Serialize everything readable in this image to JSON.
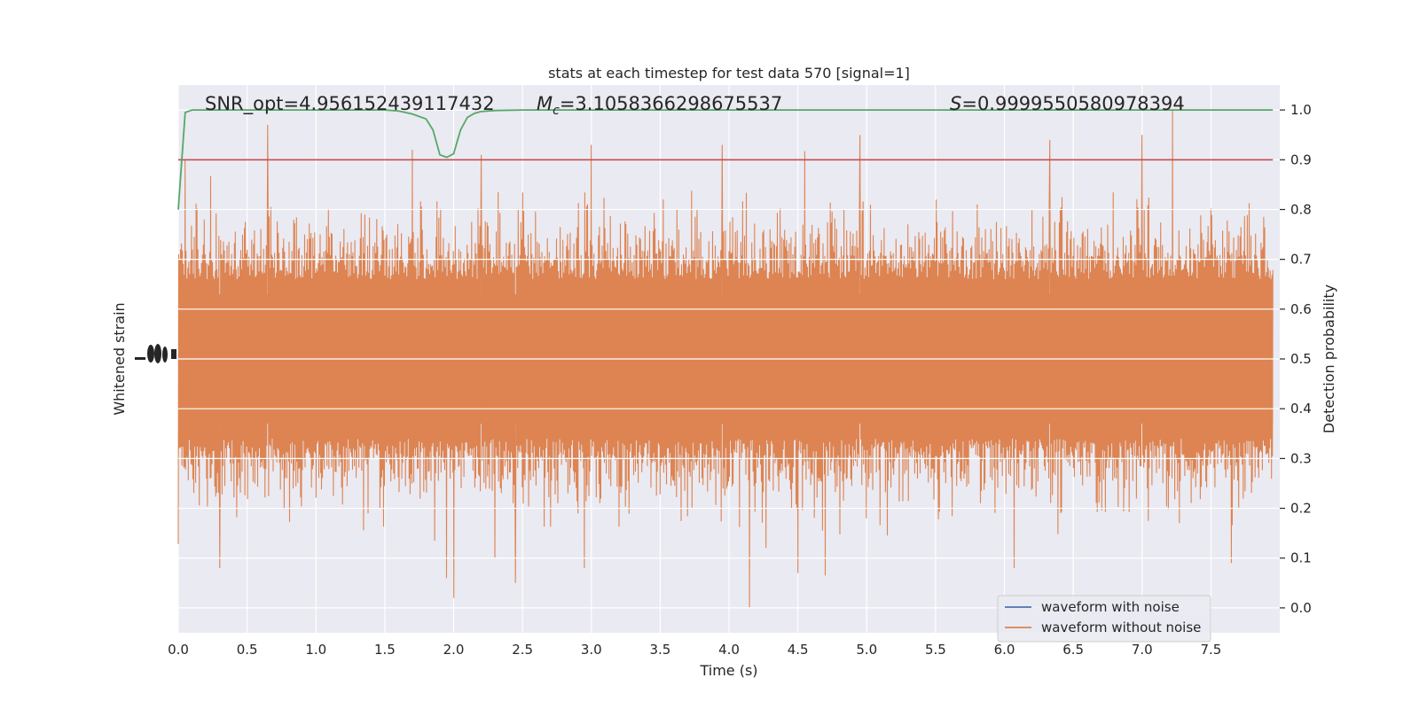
{
  "chart_data": {
    "type": "line",
    "title": "stats at each timestep for test data 570 [signal=1]",
    "xlabel": "Time (s)",
    "ylabel_left": "Whitened strain",
    "ylabel_right": "Detection probability",
    "xlim": [
      0.0,
      8.0
    ],
    "ylim_right": [
      -0.05,
      1.05
    ],
    "x_ticks": [
      "0.0",
      "0.5",
      "1.0",
      "1.5",
      "2.0",
      "2.5",
      "3.0",
      "3.5",
      "4.0",
      "4.5",
      "5.0",
      "5.5",
      "6.0",
      "6.5",
      "7.0",
      "7.5"
    ],
    "x_tick_values": [
      0.0,
      0.5,
      1.0,
      1.5,
      2.0,
      2.5,
      3.0,
      3.5,
      4.0,
      4.5,
      5.0,
      5.5,
      6.0,
      6.5,
      7.0,
      7.5
    ],
    "right_ticks": [
      "0.0",
      "0.1",
      "0.2",
      "0.3",
      "0.4",
      "0.5",
      "0.6",
      "0.7",
      "0.8",
      "0.9",
      "1.0"
    ],
    "right_tick_values": [
      0.0,
      0.1,
      0.2,
      0.3,
      0.4,
      0.5,
      0.6,
      0.7,
      0.8,
      0.9,
      1.0
    ],
    "annotations": {
      "snr": "SNR_opt=4.956152439117432",
      "mc_symbol": "M",
      "mc_subscript": "c",
      "mc_value": "=3.1058366298675537",
      "s_symbol": "S",
      "s_value": "=0.9999550580978394"
    },
    "threshold": {
      "value": 0.9,
      "color": "#c44e52"
    },
    "detection_probability": {
      "color": "#55a868",
      "x": [
        0.0,
        0.05,
        0.1,
        0.2,
        0.4,
        0.8,
        1.2,
        1.4,
        1.5,
        1.6,
        1.7,
        1.8,
        1.85,
        1.9,
        1.95,
        2.0,
        2.05,
        2.1,
        2.15,
        2.2,
        2.3,
        2.5,
        3.0,
        4.0,
        5.0,
        6.0,
        7.0,
        7.95
      ],
      "y": [
        0.8,
        0.995,
        1.0,
        1.0,
        1.0,
        1.0,
        1.0,
        1.0,
        1.0,
        0.998,
        0.992,
        0.982,
        0.96,
        0.91,
        0.905,
        0.912,
        0.96,
        0.985,
        0.993,
        0.997,
        0.999,
        1.0,
        1.0,
        1.0,
        1.0,
        1.0,
        1.0,
        1.0
      ]
    },
    "waveform_without_noise": {
      "color": "#dd8452",
      "baseline": 0.5,
      "typical_envelope": [
        0.3,
        0.7
      ],
      "noise_seed": 570,
      "peaks": [
        {
          "t": 0.65,
          "y": 0.97
        },
        {
          "t": 0.05,
          "y": 0.9
        },
        {
          "t": 1.7,
          "y": 0.92
        },
        {
          "t": 2.2,
          "y": 0.91
        },
        {
          "t": 3.0,
          "y": 0.93
        },
        {
          "t": 3.95,
          "y": 0.93
        },
        {
          "t": 4.95,
          "y": 0.95
        },
        {
          "t": 6.33,
          "y": 0.94
        },
        {
          "t": 7.0,
          "y": 0.95
        },
        {
          "t": 7.22,
          "y": 1.0
        },
        {
          "t": 1.95,
          "y": 0.06
        },
        {
          "t": 2.0,
          "y": 0.02
        },
        {
          "t": 4.15,
          "y": 0.0
        },
        {
          "t": 0.3,
          "y": 0.08
        },
        {
          "t": 2.45,
          "y": 0.05
        },
        {
          "t": 4.5,
          "y": 0.07
        },
        {
          "t": 4.7,
          "y": 0.065
        },
        {
          "t": 6.07,
          "y": 0.08
        },
        {
          "t": 7.65,
          "y": 0.09
        },
        {
          "t": 2.95,
          "y": 0.08
        },
        {
          "t": 2.3,
          "y": 0.1
        }
      ]
    },
    "waveform_with_noise": {
      "color": "#4c72b0"
    },
    "legend": {
      "placement": "lower-right",
      "items": [
        {
          "label": "waveform with noise",
          "color": "#4c72b0"
        },
        {
          "label": "waveform without noise",
          "color": "#dd8452"
        }
      ]
    },
    "grid": true,
    "background": "#eaeaf2"
  }
}
